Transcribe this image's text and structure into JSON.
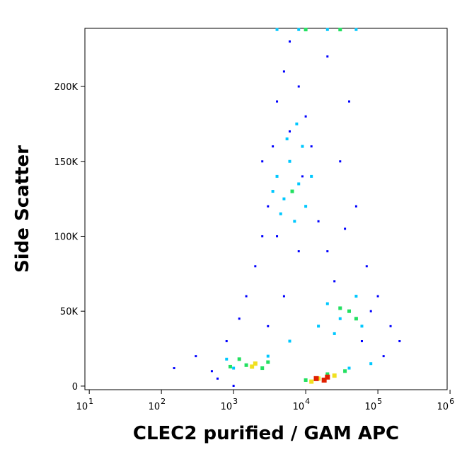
{
  "chart_data": {
    "type": "scatter",
    "x_label": "CLEC2 purified / GAM APC",
    "y_label": "Side Scatter",
    "xscale": "log",
    "xlim": [
      8.7,
      912000
    ],
    "ylim": [
      -2400,
      238800
    ],
    "xticks": [
      {
        "value": 10,
        "label": "10",
        "exponent": "1"
      },
      {
        "value": 100,
        "label": "10",
        "exponent": "2"
      },
      {
        "value": 1000,
        "label": "10",
        "exponent": "3"
      },
      {
        "value": 10000,
        "label": "10",
        "exponent": "4"
      },
      {
        "value": 100000,
        "label": "10",
        "exponent": "5"
      },
      {
        "value": 1000000,
        "label": "10",
        "exponent": "6"
      }
    ],
    "yticks": [
      0,
      {
        "value": 50000,
        "label": "50K"
      },
      {
        "value": 100000,
        "label": "100K"
      },
      {
        "value": 150000,
        "label": "150K"
      },
      {
        "value": 200000,
        "label": "200K"
      }
    ],
    "series": [
      {
        "color": "#0000ff",
        "x": [
          300,
          500,
          800,
          1200,
          1500,
          2000,
          2500,
          3000,
          3500,
          4000,
          5000,
          6000,
          8000,
          10000,
          12000,
          15000,
          20000,
          25000,
          30000,
          50000,
          70000,
          100000,
          150000,
          200000,
          600,
          1000,
          3000,
          5000,
          8000,
          20000,
          40000,
          60000,
          150,
          4000,
          6000,
          9000,
          2500,
          35000,
          80000,
          120000
        ],
        "values": [
          20000,
          10000,
          30000,
          45000,
          60000,
          80000,
          100000,
          120000,
          160000,
          190000,
          210000,
          230000,
          200000,
          180000,
          160000,
          110000,
          90000,
          70000,
          150000,
          120000,
          80000,
          60000,
          40000,
          30000,
          5000,
          200,
          40000,
          60000,
          90000,
          220000,
          190000,
          30000,
          12000,
          100000,
          170000,
          140000,
          150000,
          105000,
          50000,
          20000
        ]
      },
      {
        "color": "#00c8ff",
        "x": [
          4000,
          5000,
          6000,
          7000,
          8000,
          10000,
          5500,
          4500,
          9000,
          12000,
          3500,
          7500,
          20000,
          30000,
          50000,
          60000,
          25000,
          1000,
          3000,
          800,
          40000,
          80000,
          6000,
          15000,
          4000,
          8000,
          20000,
          50000
        ],
        "values": [
          140000,
          125000,
          150000,
          110000,
          135000,
          120000,
          165000,
          115000,
          160000,
          140000,
          130000,
          175000,
          55000,
          45000,
          60000,
          40000,
          35000,
          12000,
          20000,
          18000,
          12000,
          15000,
          30000,
          40000,
          238000,
          238000,
          238000,
          238000
        ]
      },
      {
        "color": "#22e060",
        "x": [
          1500,
          2500,
          1200,
          3000,
          900,
          40000,
          30000,
          50000,
          10000,
          20000,
          35000,
          6500,
          10000,
          30000
        ],
        "values": [
          14000,
          12000,
          18000,
          16000,
          13000,
          50000,
          52000,
          45000,
          4000,
          8000,
          10000,
          130000,
          238000,
          238000
        ]
      },
      {
        "color": "#f0e020",
        "x": [
          2000,
          1800,
          15000,
          25000,
          12000
        ],
        "values": [
          15000,
          13000,
          5000,
          7000,
          3000
        ]
      },
      {
        "color": "#e02000",
        "x": [
          18000,
          20000,
          14000
        ],
        "values": [
          4000,
          6000,
          5000
        ]
      }
    ]
  }
}
